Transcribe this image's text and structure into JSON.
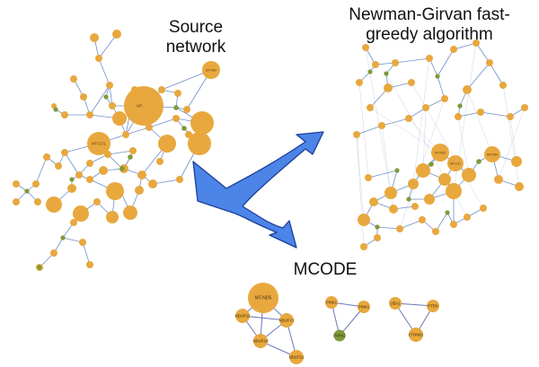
{
  "titles": {
    "source_line1": "Source",
    "source_line2": "network",
    "newman_line1": "Newman-Girvan fast-",
    "newman_line2": "greedy algorithm",
    "mcode": "MCODE"
  },
  "colors": {
    "node_orange": "#E8A83E",
    "node_green": "#7E9A3A",
    "edge": "#6F8FC9",
    "arrow_fill": "#4C84E8",
    "arrow_stroke": "#1C3F99"
  },
  "mcode_clusters": [
    {
      "nodes": [
        {
          "id": "a",
          "label": "MT-ND5",
          "big": true
        },
        {
          "id": "b",
          "label": "NDUFS2"
        },
        {
          "id": "c",
          "label": "NDUFV1"
        },
        {
          "id": "d",
          "label": "NDUFS4"
        },
        {
          "id": "e",
          "label": "NDUFS1"
        }
      ],
      "edges": [
        [
          "a",
          "b"
        ],
        [
          "a",
          "c"
        ],
        [
          "a",
          "d"
        ],
        [
          "b",
          "c"
        ],
        [
          "b",
          "d"
        ],
        [
          "c",
          "d"
        ],
        [
          "d",
          "e"
        ],
        [
          "c",
          "e"
        ]
      ]
    },
    {
      "nodes": [
        {
          "id": "a",
          "label": "PINK1"
        },
        {
          "id": "b",
          "label": "PINK1"
        },
        {
          "id": "c",
          "label": "PARK2",
          "green": true
        }
      ],
      "edges": [
        [
          "a",
          "b"
        ],
        [
          "b",
          "c"
        ],
        [
          "a",
          "c"
        ]
      ]
    },
    {
      "nodes": [
        {
          "id": "a",
          "label": "UBA1"
        },
        {
          "id": "b",
          "label": "PTEN"
        },
        {
          "id": "c",
          "label": "CTNNB1"
        }
      ],
      "edges": [
        [
          "a",
          "b"
        ],
        [
          "b",
          "c"
        ],
        [
          "a",
          "c"
        ]
      ]
    }
  ],
  "source_big_labels": [
    "MT-ND5",
    "MT-ND4",
    "MT-CO1"
  ],
  "result_big_labels": [
    "MT-ND5",
    "MT-ND4",
    "MT-CO1"
  ]
}
